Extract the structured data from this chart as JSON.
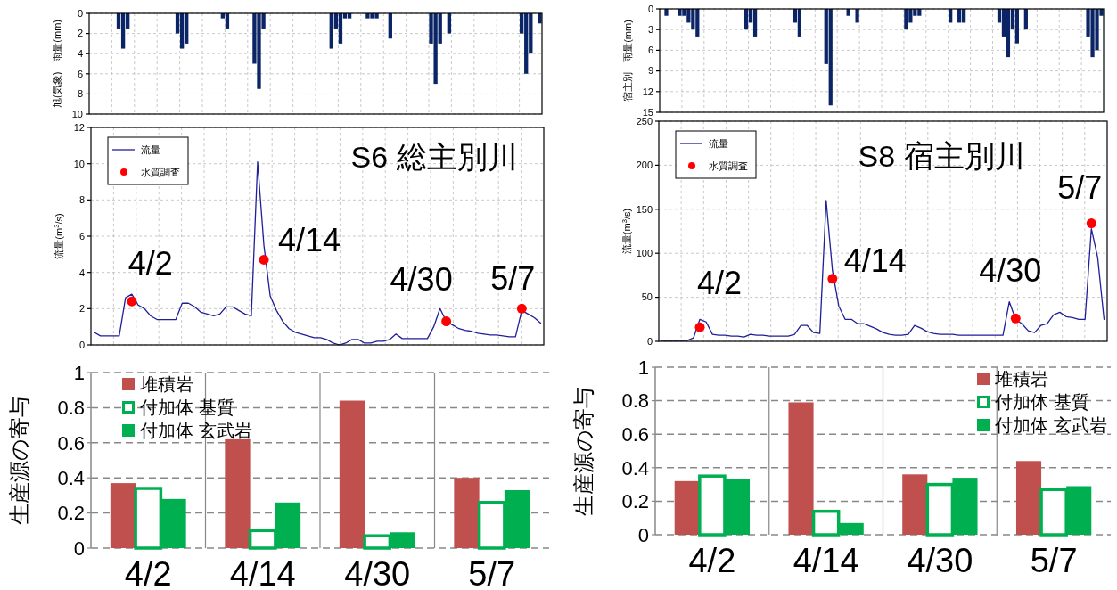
{
  "chart_data": [
    {
      "type": "bar",
      "ylabel": "旭(気象)　雨量(mm)",
      "color": "#0b2466",
      "ylim": [
        10,
        0
      ],
      "yticks": [
        0,
        2,
        4,
        6,
        8,
        10
      ],
      "grid": true,
      "tick_labels": "y",
      "categories": [
        null,
        null,
        null,
        null,
        null,
        null,
        null,
        null,
        null,
        null,
        null,
        null,
        null,
        null,
        null,
        null,
        null,
        null,
        null,
        null,
        null,
        null,
        null,
        null,
        null,
        null,
        null,
        null,
        null,
        null,
        null,
        null,
        null,
        null,
        null,
        null,
        null,
        null,
        null,
        null,
        null,
        null,
        null,
        null,
        null,
        null,
        null,
        null,
        null,
        null,
        null,
        null,
        null,
        null,
        null,
        null,
        null,
        null,
        null,
        null,
        null,
        null,
        null,
        null,
        null,
        null,
        null,
        null,
        null,
        null,
        null,
        null,
        null,
        null,
        null,
        null,
        null,
        null,
        null,
        null,
        null,
        null,
        null,
        null,
        null,
        null,
        null,
        null,
        null,
        null,
        null,
        null,
        null,
        null,
        null,
        null,
        null,
        null,
        null,
        null
      ],
      "values": [
        0,
        0,
        0,
        0,
        0,
        0,
        1.5,
        3.5,
        1.5,
        0,
        0,
        0,
        0,
        0,
        0,
        0,
        0,
        0,
        0,
        2,
        3.5,
        3,
        0,
        0,
        0,
        0,
        0,
        0,
        0,
        0.5,
        1.5,
        0,
        0,
        0,
        0,
        0,
        5,
        7.5,
        1.5,
        0,
        0,
        0,
        0,
        0,
        0,
        0,
        0,
        0,
        0,
        0,
        0,
        0,
        0,
        3.5,
        1.5,
        3,
        0.5,
        0.5,
        0,
        0,
        0,
        0.5,
        0.5,
        0.5,
        0,
        0,
        2.5,
        0,
        0,
        0,
        0,
        0,
        0,
        0,
        0,
        3,
        7,
        3,
        0,
        2,
        0,
        0,
        0,
        0,
        0,
        0,
        0,
        0,
        0,
        0,
        0,
        0,
        0,
        0,
        0,
        2,
        6,
        4,
        0,
        1
      ]
    },
    {
      "type": "bar",
      "ylabel": "宿主別　雨量(mm)",
      "color": "#0b2466",
      "ylim": [
        15,
        0
      ],
      "yticks": [
        0,
        3,
        6,
        9,
        12,
        15
      ],
      "grid": true,
      "tick_labels": "y",
      "categories": [
        null,
        null,
        null,
        null,
        null,
        null,
        null,
        null,
        null,
        null,
        null,
        null,
        null,
        null,
        null,
        null,
        null,
        null,
        null,
        null,
        null,
        null,
        null,
        null,
        null,
        null,
        null,
        null,
        null,
        null,
        null,
        null,
        null,
        null,
        null,
        null,
        null,
        null,
        null,
        null,
        null,
        null,
        null,
        null,
        null,
        null,
        null,
        null,
        null,
        null,
        null,
        null,
        null,
        null,
        null,
        null,
        null,
        null,
        null,
        null,
        null,
        null,
        null,
        null,
        null,
        null,
        null,
        null,
        null,
        null,
        null,
        null,
        null,
        null,
        null,
        null,
        null,
        null,
        null,
        null,
        null,
        null,
        null,
        null,
        null,
        null,
        null,
        null,
        null,
        null,
        null,
        null,
        null,
        null,
        null,
        null,
        null,
        null,
        null,
        null
      ],
      "values": [
        0,
        1,
        0,
        0,
        1,
        1,
        2,
        3,
        4,
        0,
        0,
        0,
        0,
        0,
        0,
        0,
        0,
        0,
        0,
        3,
        2,
        4,
        0,
        0,
        0,
        0,
        0,
        0,
        0,
        0,
        2,
        4,
        0,
        0,
        0,
        0,
        0,
        8,
        14,
        0,
        0,
        0,
        1,
        0,
        2,
        0,
        0,
        0,
        0,
        0,
        0,
        0,
        0,
        0,
        0,
        3,
        2,
        1,
        1,
        0,
        0,
        0,
        0,
        0,
        0,
        2,
        0,
        2,
        2,
        0,
        0,
        0,
        0,
        0,
        0,
        0,
        2,
        4,
        7,
        3,
        5,
        0,
        3,
        0,
        0,
        0,
        0,
        0,
        0,
        0,
        0,
        0,
        0,
        0,
        0,
        0,
        4,
        7,
        6,
        1
      ]
    },
    {
      "type": "line",
      "title": "S6 総主別川",
      "ylabel": "流量(m$^{3}$/s)",
      "ylim": [
        0,
        12
      ],
      "yticks": [
        0,
        2,
        4,
        6,
        8,
        10,
        12
      ],
      "grid": true,
      "tick_labels": "y",
      "legend": "top left",
      "categories": [
        null,
        null,
        null,
        null,
        null,
        null,
        null,
        null,
        null,
        null,
        null,
        null,
        null,
        null,
        null,
        null,
        null,
        null,
        null,
        null,
        null,
        null,
        null,
        null,
        null,
        null,
        null,
        null,
        null,
        null,
        null,
        null,
        null,
        null,
        null,
        null,
        null,
        null,
        null,
        null,
        null,
        null,
        null,
        null,
        null,
        null,
        null,
        null,
        null,
        null,
        null,
        null,
        null,
        null,
        null,
        null,
        null,
        null,
        null,
        null,
        null,
        null,
        null,
        null,
        null,
        null,
        null,
        null,
        null,
        null,
        null,
        null
      ],
      "series": [
        {
          "name": "流量",
          "color": "#1f1f99",
          "values": [
            0.7,
            0.5,
            0.5,
            0.5,
            0.5,
            2.6,
            2.8,
            2.2,
            2.0,
            1.6,
            1.4,
            1.4,
            1.4,
            1.4,
            2.3,
            2.3,
            2.1,
            1.8,
            1.7,
            1.6,
            1.7,
            2.1,
            2.1,
            1.9,
            1.7,
            1.6,
            10.1,
            5.5,
            2.7,
            1.9,
            1.3,
            0.9,
            0.7,
            0.6,
            0.5,
            0.4,
            0.4,
            0.3,
            0.1,
            0,
            0.1,
            0.3,
            0.3,
            0.1,
            0.1,
            0.2,
            0.2,
            0.3,
            0.6,
            0.35,
            0.35,
            0.35,
            0.35,
            0.35,
            1.0,
            2.0,
            1.3,
            1.1,
            0.9,
            0.8,
            0.75,
            0.65,
            0.6,
            0.55,
            0.55,
            0.5,
            0.45,
            0.45,
            1.9,
            1.7,
            1.5,
            1.2
          ]
        },
        {
          "name": "水質調査",
          "type": "scatter",
          "color": "#ff0000",
          "values": [
            null,
            null,
            null,
            null,
            null,
            null,
            2.4,
            null,
            null,
            null,
            null,
            null,
            null,
            null,
            null,
            null,
            null,
            null,
            null,
            null,
            null,
            null,
            null,
            null,
            null,
            null,
            null,
            4.7,
            null,
            null,
            null,
            null,
            null,
            null,
            null,
            null,
            null,
            null,
            null,
            null,
            null,
            null,
            null,
            null,
            null,
            null,
            null,
            null,
            null,
            null,
            null,
            null,
            null,
            null,
            null,
            null,
            1.3,
            null,
            null,
            null,
            null,
            null,
            null,
            null,
            null,
            null,
            null,
            null,
            2.0,
            null,
            null,
            null
          ]
        }
      ],
      "annotations": [
        "4/2",
        "4/14",
        "4/30",
        "5/7"
      ]
    },
    {
      "type": "line",
      "title": "S8 宿主別川",
      "ylabel": "流量(m$^{3}$/s)",
      "ylim": [
        0,
        250
      ],
      "yticks": [
        0,
        50,
        100,
        150,
        200,
        250
      ],
      "grid": true,
      "tick_labels": "y",
      "legend": "top left",
      "categories": [
        null,
        null,
        null,
        null,
        null,
        null,
        null,
        null,
        null,
        null,
        null,
        null,
        null,
        null,
        null,
        null,
        null,
        null,
        null,
        null,
        null,
        null,
        null,
        null,
        null,
        null,
        null,
        null,
        null,
        null,
        null,
        null,
        null,
        null,
        null,
        null,
        null,
        null,
        null,
        null,
        null,
        null,
        null,
        null,
        null,
        null,
        null,
        null,
        null,
        null,
        null,
        null,
        null,
        null,
        null,
        null,
        null,
        null,
        null,
        null,
        null,
        null,
        null,
        null,
        null,
        null,
        null,
        null,
        null,
        null,
        null
      ],
      "series": [
        {
          "name": "流量",
          "color": "#1f1f99",
          "values": [
            1,
            1,
            1,
            1,
            1,
            4,
            25,
            22,
            8,
            7,
            7,
            6,
            6,
            5,
            8,
            7,
            7,
            6,
            6,
            6,
            6,
            8,
            18,
            18,
            10,
            9,
            160,
            80,
            40,
            25,
            25,
            20,
            20,
            17,
            14,
            10,
            8,
            7,
            7,
            8,
            18,
            15,
            11,
            9,
            8,
            8,
            8,
            7,
            7,
            7,
            7,
            7,
            7,
            7,
            7,
            45,
            25,
            20,
            12,
            10,
            18,
            20,
            30,
            33,
            28,
            27,
            25,
            25,
            128,
            95,
            25
          ]
        },
        {
          "name": "水質調査",
          "type": "scatter",
          "color": "#ff0000",
          "values": [
            null,
            null,
            null,
            null,
            null,
            null,
            16,
            null,
            null,
            null,
            null,
            null,
            null,
            null,
            null,
            null,
            null,
            null,
            null,
            null,
            null,
            null,
            null,
            null,
            null,
            null,
            null,
            71,
            null,
            null,
            null,
            null,
            null,
            null,
            null,
            null,
            null,
            null,
            null,
            null,
            null,
            null,
            null,
            null,
            null,
            null,
            null,
            null,
            null,
            null,
            null,
            null,
            null,
            null,
            null,
            null,
            26,
            null,
            null,
            null,
            null,
            null,
            null,
            null,
            null,
            null,
            null,
            null,
            134,
            null,
            null
          ]
        }
      ],
      "annotations": [
        "4/2",
        "4/14",
        "4/30",
        "5/7"
      ]
    },
    {
      "type": "bar",
      "ylabel": "生産源の寄与",
      "categories": [
        "4/2",
        "4/14",
        "4/30",
        "5/7"
      ],
      "ylim": [
        0,
        1
      ],
      "yticks": [
        0,
        0.2,
        0.4,
        0.6,
        0.8,
        1
      ],
      "grid": true,
      "legend": "top left",
      "series": [
        {
          "name": "堆積岩",
          "color": "#c0504d",
          "values": [
            0.37,
            0.62,
            0.84,
            0.4
          ]
        },
        {
          "name": "付加体 基質",
          "color": "#00b050",
          "values": [
            0.34,
            0.1,
            0.07,
            0.26
          ]
        },
        {
          "name": "付加体 玄武岩",
          "color": "#00b050",
          "values": [
            0.28,
            0.26,
            0.09,
            0.33
          ]
        }
      ]
    },
    {
      "type": "bar",
      "ylabel": "生産源の寄与",
      "categories": [
        "4/2",
        "4/14",
        "4/30",
        "5/7"
      ],
      "ylim": [
        0,
        1
      ],
      "yticks": [
        0,
        0.2,
        0.4,
        0.6,
        0.8,
        1
      ],
      "grid": true,
      "legend": "top right",
      "series": [
        {
          "name": "堆積岩",
          "color": "#c0504d",
          "values": [
            0.32,
            0.79,
            0.36,
            0.44
          ]
        },
        {
          "name": "付加体 基質",
          "color": "#00b050",
          "values": [
            0.35,
            0.14,
            0.3,
            0.27
          ]
        },
        {
          "name": "付加体 玄武岩",
          "color": "#00b050",
          "values": [
            0.33,
            0.07,
            0.34,
            0.29
          ]
        }
      ]
    }
  ]
}
